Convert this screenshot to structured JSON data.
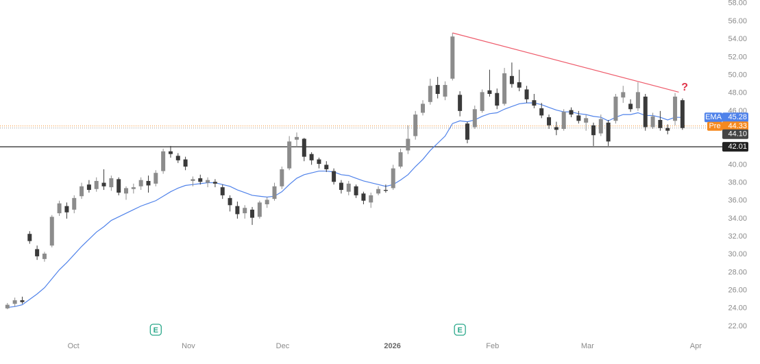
{
  "chart_data": {
    "type": "candlestick",
    "up_color": "#8c8c8c",
    "down_color": "#3a3a3a",
    "xlim": [
      -1,
      96
    ],
    "ylim": [
      21,
      59
    ],
    "xticks": [
      {
        "value": 8.9,
        "label": "Oct"
      },
      {
        "value": 24.4,
        "label": "Nov"
      },
      {
        "value": 37.1,
        "label": "Dec"
      },
      {
        "value": 51.9,
        "label": "2026"
      },
      {
        "value": 65.4,
        "label": "Feb"
      },
      {
        "value": 78.2,
        "label": "Mar"
      },
      {
        "value": 92.8,
        "label": "Apr"
      }
    ],
    "yticks": [
      {
        "value": 22,
        "label": "22.00"
      },
      {
        "value": 24,
        "label": "24.00"
      },
      {
        "value": 26,
        "label": "26.00"
      },
      {
        "value": 28,
        "label": "28.00"
      },
      {
        "value": 30,
        "label": "30.00"
      },
      {
        "value": 32,
        "label": "32.00"
      },
      {
        "value": 34,
        "label": "34.00"
      },
      {
        "value": 36,
        "label": "36.00"
      },
      {
        "value": 38,
        "label": "38.00"
      },
      {
        "value": 40,
        "label": "40.00"
      },
      {
        "value": 42,
        "label": "42.00"
      },
      {
        "value": 44,
        "label": "44.00"
      },
      {
        "value": 46,
        "label": "46.00"
      },
      {
        "value": 48,
        "label": "48.00"
      },
      {
        "value": 50,
        "label": "50.00"
      },
      {
        "value": 52,
        "label": "52.00"
      },
      {
        "value": 54,
        "label": "54.00"
      },
      {
        "value": 56,
        "label": "56.00"
      },
      {
        "value": 58,
        "label": "58.00"
      }
    ],
    "open": [
      24.0,
      24.5,
      24.9,
      32.3,
      30.6,
      29.5,
      31.0,
      34.6,
      35.4,
      35.0,
      36.5,
      37.8,
      37.3,
      38.0,
      37.5,
      38.4,
      36.8,
      37.3,
      37.6,
      38.2,
      37.9,
      39.3,
      41.5,
      41.0,
      40.6,
      38.2,
      38.5,
      38.0,
      38.1,
      37.5,
      36.3,
      35.4,
      34.6,
      35.0,
      34.2,
      35.6,
      36.2,
      37.6,
      39.6,
      42.8,
      42.9,
      41.2,
      40.6,
      40.0,
      39.3,
      38.0,
      37.0,
      37.6,
      36.8,
      35.8,
      36.8,
      37.2,
      37.4,
      39.8,
      41.6,
      43.2,
      45.8,
      47.0,
      48.9,
      47.6,
      49.6,
      47.8,
      44.6,
      44.2,
      46.0,
      48.3,
      48.0,
      46.8,
      49.9,
      49.2,
      48.4,
      47.2,
      46.3,
      45.3,
      44.2,
      44.0,
      46.1,
      45.5,
      44.7,
      44.4,
      43.5,
      44.7,
      44.9,
      47.5,
      46.8,
      46.3,
      47.6,
      44.2,
      45.0,
      44.1,
      44.9,
      47.2
    ],
    "high": [
      24.6,
      25.2,
      25.3,
      32.6,
      31.0,
      30.3,
      34.4,
      36.0,
      35.8,
      36.6,
      38.0,
      38.3,
      38.6,
      39.5,
      38.8,
      38.6,
      37.6,
      37.9,
      38.6,
      38.8,
      39.4,
      41.8,
      42.1,
      41.3,
      40.9,
      38.7,
      38.9,
      38.6,
      38.4,
      37.8,
      36.6,
      35.9,
      35.5,
      35.3,
      36.0,
      36.4,
      38.0,
      39.8,
      43.2,
      43.6,
      43.0,
      41.4,
      40.8,
      40.4,
      39.6,
      38.3,
      38.2,
      37.8,
      37.0,
      36.9,
      37.6,
      37.8,
      40.0,
      41.8,
      44.4,
      46.0,
      47.2,
      49.6,
      49.8,
      49.3,
      54.7,
      48.2,
      44.8,
      46.6,
      48.4,
      50.6,
      48.5,
      50.8,
      51.4,
      50.6,
      48.8,
      47.9,
      46.9,
      45.6,
      44.8,
      46.2,
      46.4,
      46.0,
      45.6,
      44.7,
      45.6,
      45.0,
      47.9,
      48.8,
      47.3,
      49.2,
      47.9,
      45.8,
      46.0,
      44.5,
      48.0,
      47.4
    ],
    "low": [
      23.9,
      24.2,
      24.5,
      31.2,
      29.4,
      29.2,
      30.8,
      34.3,
      34.0,
      34.6,
      36.2,
      36.9,
      37.0,
      37.2,
      37.1,
      36.6,
      36.1,
      36.8,
      37.2,
      36.9,
      37.6,
      39.0,
      40.8,
      40.2,
      39.4,
      37.6,
      37.8,
      37.5,
      37.5,
      36.2,
      34.8,
      34.0,
      34.0,
      33.3,
      34.0,
      35.2,
      36.0,
      37.3,
      39.4,
      42.0,
      40.4,
      40.0,
      39.6,
      39.2,
      37.8,
      36.8,
      36.6,
      36.3,
      35.6,
      35.2,
      36.6,
      36.9,
      37.2,
      39.6,
      41.2,
      42.8,
      45.5,
      46.7,
      47.4,
      47.2,
      49.4,
      45.4,
      42.4,
      44.0,
      45.8,
      47.6,
      46.2,
      46.6,
      48.6,
      48.2,
      46.9,
      46.3,
      45.2,
      44.0,
      43.3,
      43.8,
      45.3,
      44.6,
      43.8,
      42.1,
      43.2,
      42.1,
      44.6,
      46.9,
      45.9,
      46.0,
      43.8,
      44.0,
      43.8,
      43.4,
      44.4,
      43.9
    ],
    "close": [
      24.4,
      24.9,
      24.7,
      31.5,
      29.8,
      30.1,
      34.2,
      35.7,
      34.7,
      36.3,
      37.6,
      37.2,
      38.2,
      37.6,
      38.5,
      36.9,
      37.4,
      37.5,
      38.3,
      37.7,
      39.1,
      41.5,
      41.2,
      40.5,
      39.8,
      38.4,
      38.1,
      38.3,
      37.9,
      36.6,
      35.5,
      34.5,
      35.2,
      34.1,
      35.8,
      36.1,
      37.6,
      39.5,
      42.6,
      43.1,
      40.9,
      40.5,
      40.1,
      39.5,
      38.1,
      37.2,
      37.9,
      36.6,
      36.0,
      36.6,
      37.3,
      37.1,
      39.6,
      41.4,
      42.9,
      45.6,
      46.8,
      48.8,
      47.9,
      48.9,
      54.3,
      46.0,
      42.8,
      46.2,
      48.1,
      47.9,
      46.6,
      50.2,
      49.0,
      48.6,
      47.3,
      46.6,
      45.5,
      44.4,
      43.9,
      45.9,
      45.6,
      44.9,
      45.2,
      43.3,
      45.1,
      42.6,
      47.6,
      48.1,
      46.2,
      48.1,
      44.2,
      45.4,
      44.1,
      43.8,
      47.6,
      44.1
    ],
    "ema": {
      "name": "EMA",
      "color": "#4f82ea",
      "last": 45.28,
      "values": [
        24.1,
        24.2,
        24.4,
        25.0,
        25.6,
        26.3,
        27.3,
        28.3,
        29.1,
        30.0,
        30.9,
        31.7,
        32.5,
        33.1,
        33.8,
        34.2,
        34.6,
        35.0,
        35.4,
        35.7,
        36.0,
        36.5,
        37.0,
        37.4,
        37.7,
        37.8,
        37.9,
        38.0,
        38.0,
        37.8,
        37.6,
        37.2,
        36.9,
        36.6,
        36.5,
        36.4,
        36.5,
        37.0,
        37.8,
        38.5,
        38.9,
        39.1,
        39.3,
        39.3,
        39.2,
        38.9,
        38.8,
        38.5,
        38.2,
        38.0,
        37.8,
        37.6,
        37.8,
        38.3,
        38.9,
        39.8,
        40.6,
        41.6,
        42.4,
        43.2,
        44.6,
        44.9,
        44.8,
        45.0,
        45.4,
        45.7,
        45.8,
        46.2,
        46.5,
        46.8,
        46.9,
        46.9,
        46.7,
        46.4,
        46.1,
        45.9,
        45.9,
        45.7,
        45.6,
        45.4,
        45.3,
        44.9,
        45.3,
        45.6,
        45.6,
        45.8,
        45.5,
        45.5,
        45.3,
        45.0,
        45.3,
        45.28
      ]
    },
    "pre": {
      "name": "Pre",
      "value": 44.33,
      "color": "#f5891f"
    },
    "last_price": {
      "value": 44.1,
      "label": "44.10",
      "color": "#444444"
    },
    "support": {
      "value": 42.01,
      "color": "#222222"
    },
    "trendline": {
      "x": [
        60,
        90.5
      ],
      "y": [
        54.7,
        48.1
      ],
      "color": "#ee5b6b"
    },
    "annotation": {
      "text": "?",
      "x": 91.3,
      "y": 48.6,
      "color": "#e0344a"
    },
    "earnings": [
      {
        "x": 20,
        "label": "E"
      },
      {
        "x": 61,
        "label": "E"
      }
    ]
  }
}
